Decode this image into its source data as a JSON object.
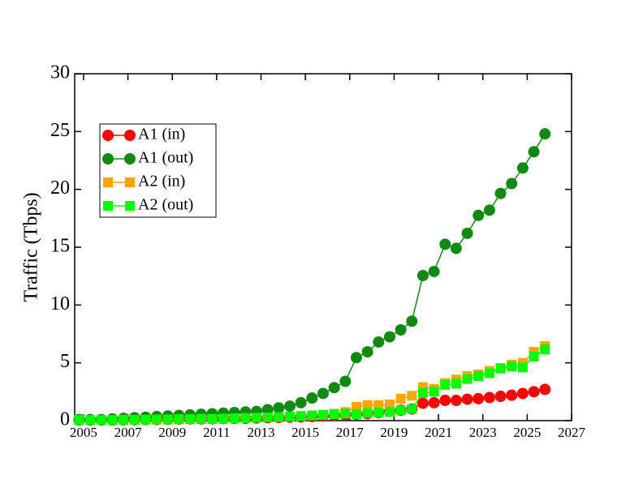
{
  "chart_data": {
    "type": "line",
    "ylabel": "Traffic (Tbps)",
    "x": [
      2004.8,
      2005.3,
      2005.8,
      2006.3,
      2006.8,
      2007.3,
      2007.8,
      2008.3,
      2008.8,
      2009.3,
      2009.8,
      2010.3,
      2010.8,
      2011.3,
      2011.8,
      2012.3,
      2012.8,
      2013.3,
      2013.8,
      2014.3,
      2014.8,
      2015.3,
      2015.8,
      2016.3,
      2016.8,
      2017.3,
      2017.8,
      2018.3,
      2018.8,
      2019.3,
      2019.8,
      2020.3,
      2020.8,
      2021.3,
      2021.8,
      2022.3,
      2022.8,
      2023.3,
      2023.8,
      2024.3,
      2024.8,
      2025.3,
      2025.8
    ],
    "series": [
      {
        "name": "A1 (in)",
        "color": "#ff0000",
        "marker": "circle",
        "values": [
          0.05,
          0.05,
          0.05,
          0.05,
          0.07,
          0.08,
          0.1,
          0.1,
          0.12,
          0.13,
          0.15,
          0.15,
          0.17,
          0.18,
          0.2,
          0.2,
          0.22,
          0.25,
          0.27,
          0.3,
          0.32,
          0.35,
          0.4,
          0.45,
          0.5,
          0.55,
          0.6,
          0.7,
          0.8,
          0.9,
          1.0,
          1.5,
          1.55,
          1.75,
          1.75,
          1.85,
          1.9,
          2.0,
          2.1,
          2.2,
          2.35,
          2.5,
          2.7
        ]
      },
      {
        "name": "A1 (out)",
        "color": "#128a12",
        "marker": "circle",
        "values": [
          0.1,
          0.1,
          0.1,
          0.15,
          0.2,
          0.25,
          0.3,
          0.35,
          0.4,
          0.45,
          0.5,
          0.55,
          0.6,
          0.65,
          0.7,
          0.75,
          0.8,
          0.95,
          1.1,
          1.25,
          1.55,
          1.95,
          2.35,
          2.85,
          3.4,
          5.45,
          5.95,
          6.8,
          7.25,
          7.85,
          8.6,
          12.55,
          12.9,
          15.25,
          14.9,
          16.2,
          17.75,
          18.2,
          19.65,
          20.5,
          21.85,
          23.25,
          24.8
        ]
      },
      {
        "name": "A2 (in)",
        "color": "#ffa500",
        "marker": "square",
        "values": [
          0.05,
          0.05,
          0.05,
          0.05,
          0.06,
          0.07,
          0.08,
          0.1,
          0.1,
          0.12,
          0.13,
          0.15,
          0.15,
          0.17,
          0.2,
          0.22,
          0.25,
          0.28,
          0.3,
          0.35,
          0.4,
          0.45,
          0.5,
          0.6,
          0.75,
          1.2,
          1.35,
          1.35,
          1.4,
          1.9,
          2.15,
          2.9,
          2.75,
          3.25,
          3.55,
          3.85,
          4.0,
          4.3,
          4.55,
          4.85,
          5.0,
          5.95,
          6.45
        ]
      },
      {
        "name": "A2 (out)",
        "color": "#00ff00",
        "marker": "square",
        "values": [
          0.05,
          0.05,
          0.05,
          0.05,
          0.06,
          0.07,
          0.08,
          0.1,
          0.1,
          0.12,
          0.13,
          0.15,
          0.15,
          0.17,
          0.2,
          0.22,
          0.25,
          0.28,
          0.3,
          0.35,
          0.4,
          0.45,
          0.5,
          0.55,
          0.6,
          0.55,
          0.65,
          0.7,
          0.75,
          0.9,
          1.0,
          2.4,
          2.5,
          3.1,
          3.2,
          3.6,
          3.85,
          4.1,
          4.5,
          4.7,
          4.6,
          5.55,
          6.15
        ]
      }
    ],
    "xlim": [
      2004.6,
      2027
    ],
    "xticks": [
      2005,
      2007,
      2009,
      2011,
      2013,
      2015,
      2017,
      2019,
      2021,
      2023,
      2025,
      2027
    ],
    "ylim": [
      0,
      30
    ],
    "yticks": [
      0,
      5,
      10,
      15,
      20,
      25,
      30
    ],
    "legend": "upper left"
  }
}
